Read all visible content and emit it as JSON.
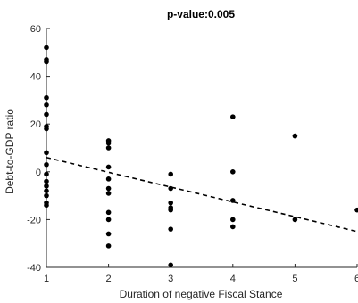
{
  "chart_data": {
    "type": "scatter",
    "title": "p-value:0.005",
    "xlabel": "Duration of negative Fiscal Stance",
    "ylabel": "Debt-to-GDP ratio",
    "xlim": [
      1,
      6
    ],
    "ylim": [
      -40,
      60
    ],
    "xticks": [
      1,
      2,
      3,
      4,
      5,
      6
    ],
    "yticks": [
      -40,
      -20,
      0,
      20,
      40,
      60
    ],
    "grid": false,
    "legend": "none",
    "series": [
      {
        "kind": "points",
        "points": [
          [
            1,
            52
          ],
          [
            1,
            47
          ],
          [
            1,
            46
          ],
          [
            1,
            31
          ],
          [
            1,
            28
          ],
          [
            1,
            24
          ],
          [
            1,
            19
          ],
          [
            1,
            18
          ],
          [
            1,
            8
          ],
          [
            1,
            3
          ],
          [
            1,
            -1
          ],
          [
            1,
            -4
          ],
          [
            1,
            -6
          ],
          [
            1,
            -8
          ],
          [
            1,
            -10
          ],
          [
            1,
            -13
          ],
          [
            1,
            -14
          ],
          [
            2,
            13
          ],
          [
            2,
            12
          ],
          [
            2,
            10
          ],
          [
            2,
            2
          ],
          [
            2,
            -3
          ],
          [
            2,
            -7
          ],
          [
            2,
            -9
          ],
          [
            2,
            -17
          ],
          [
            2,
            -20
          ],
          [
            2,
            -26
          ],
          [
            2,
            -31
          ],
          [
            3,
            -1
          ],
          [
            3,
            -7
          ],
          [
            3,
            -13
          ],
          [
            3,
            -15
          ],
          [
            3,
            -16
          ],
          [
            3,
            -24
          ],
          [
            3,
            -39
          ],
          [
            4,
            23
          ],
          [
            4,
            0
          ],
          [
            4,
            -12
          ],
          [
            4,
            -20
          ],
          [
            4,
            -23
          ],
          [
            5,
            15
          ],
          [
            5,
            -20
          ],
          [
            6,
            -16
          ]
        ]
      },
      {
        "kind": "fit-line",
        "style": "dashed",
        "points": [
          [
            1,
            6
          ],
          [
            6,
            -25
          ]
        ]
      }
    ],
    "colors": {
      "points": "#000000",
      "fit_line": "#000000",
      "axes": "#262626"
    }
  }
}
